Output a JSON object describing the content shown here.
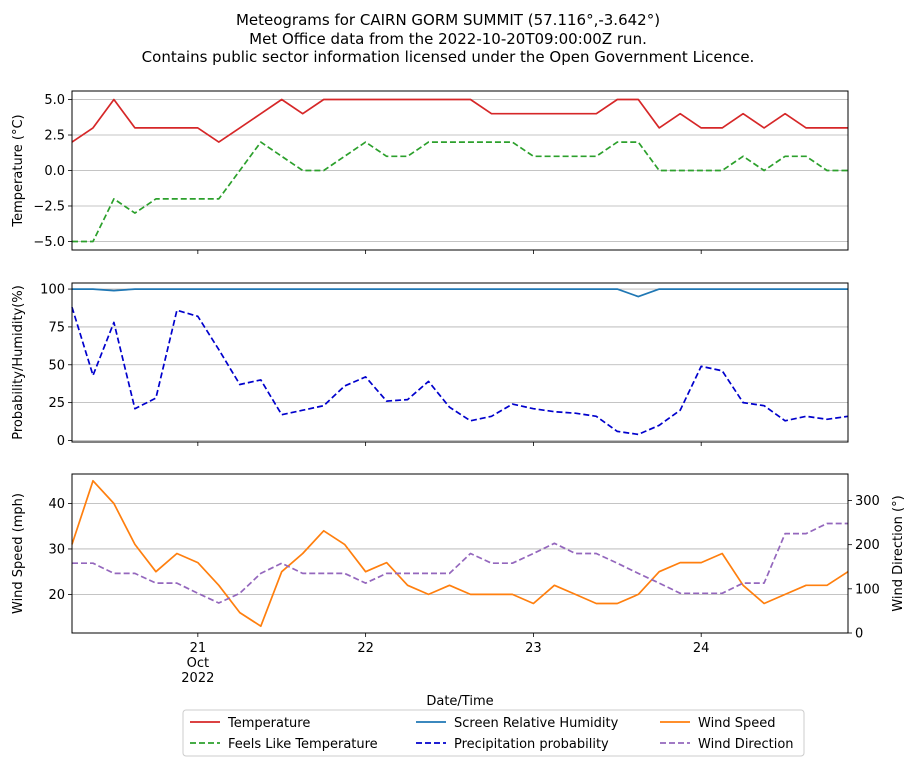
{
  "title_lines": [
    "Meteograms for CAIRN GORM SUMMIT (57.116°,-3.642°)",
    "Met Office data from the 2022-10-20T09:00:00Z run.",
    "Contains public sector information licensed under the Open Government Licence."
  ],
  "x_axis": {
    "label": "Date/Time",
    "start": "2022-10-20T06:00",
    "end": "2022-10-24T21:00",
    "ticks": [
      {
        "time": "2022-10-21T00:00",
        "lines": [
          "21",
          "Oct",
          "2022"
        ]
      },
      {
        "time": "2022-10-22T00:00",
        "lines": [
          "22"
        ]
      },
      {
        "time": "2022-10-23T00:00",
        "lines": [
          "23"
        ]
      },
      {
        "time": "2022-10-24T00:00",
        "lines": [
          "24"
        ]
      }
    ]
  },
  "colors": {
    "temperature": "#d62728",
    "feels_like": "#2ca02c",
    "humidity": "#1f77b4",
    "precip": "#0000cc",
    "wind_speed": "#ff7f0e",
    "wind_dir": "#9467bd",
    "grid": "#b0b0b0"
  },
  "legend": {
    "placement": "bottom-center",
    "entries": [
      {
        "label": "Temperature",
        "color": "#d62728",
        "dash": false
      },
      {
        "label": "Feels Like Temperature",
        "color": "#2ca02c",
        "dash": true
      },
      {
        "label": "Screen Relative Humidity",
        "color": "#1f77b4",
        "dash": false
      },
      {
        "label": "Precipitation probability",
        "color": "#0000cc",
        "dash": true
      },
      {
        "label": "Wind Speed",
        "color": "#ff7f0e",
        "dash": false
      },
      {
        "label": "Wind Direction",
        "color": "#9467bd",
        "dash": true
      }
    ]
  },
  "chart_data": [
    {
      "type": "line",
      "ylabel": "Temperature (°C)",
      "ylim": [
        -5.6,
        5.6
      ],
      "yticks": [
        -5.0,
        -2.5,
        0.0,
        2.5,
        5.0
      ],
      "ytick_labels": [
        "−5.0",
        "−2.5",
        "0.0",
        "2.5",
        "5.0"
      ],
      "grid": true,
      "x": [
        "2022-10-20T06:00",
        "2022-10-20T09:00",
        "2022-10-20T12:00",
        "2022-10-20T15:00",
        "2022-10-20T18:00",
        "2022-10-20T21:00",
        "2022-10-21T00:00",
        "2022-10-21T03:00",
        "2022-10-21T06:00",
        "2022-10-21T09:00",
        "2022-10-21T12:00",
        "2022-10-21T15:00",
        "2022-10-21T18:00",
        "2022-10-21T21:00",
        "2022-10-22T00:00",
        "2022-10-22T03:00",
        "2022-10-22T06:00",
        "2022-10-22T09:00",
        "2022-10-22T12:00",
        "2022-10-22T15:00",
        "2022-10-22T18:00",
        "2022-10-22T21:00",
        "2022-10-23T00:00",
        "2022-10-23T03:00",
        "2022-10-23T06:00",
        "2022-10-23T09:00",
        "2022-10-23T12:00",
        "2022-10-23T15:00",
        "2022-10-23T18:00",
        "2022-10-23T21:00",
        "2022-10-24T00:00",
        "2022-10-24T03:00",
        "2022-10-24T06:00",
        "2022-10-24T09:00",
        "2022-10-24T12:00",
        "2022-10-24T15:00",
        "2022-10-24T18:00",
        "2022-10-24T21:00"
      ],
      "series": [
        {
          "name": "Temperature",
          "color": "#d62728",
          "dash": false,
          "values": [
            2,
            3,
            5,
            3,
            3,
            3,
            3,
            2,
            3,
            4,
            5,
            4,
            5,
            5,
            5,
            5,
            5,
            5,
            5,
            5,
            4,
            4,
            4,
            4,
            4,
            4,
            5,
            5,
            3,
            4,
            3,
            3,
            4,
            3,
            4,
            3,
            3,
            3
          ]
        },
        {
          "name": "Feels Like Temperature",
          "color": "#2ca02c",
          "dash": true,
          "values": [
            -5,
            -5,
            -2,
            -3,
            -2,
            -2,
            -2,
            -2,
            0,
            2,
            1,
            0,
            0,
            1,
            2,
            1,
            1,
            2,
            2,
            2,
            2,
            2,
            1,
            1,
            1,
            1,
            2,
            2,
            0,
            0,
            0,
            0,
            1,
            0,
            1,
            1,
            0,
            0
          ]
        }
      ]
    },
    {
      "type": "line",
      "ylabel": "Probability/Humidity(%)",
      "ylim": [
        -1,
        104
      ],
      "yticks": [
        0,
        25,
        50,
        75,
        100
      ],
      "ytick_labels": [
        "0",
        "25",
        "50",
        "75",
        "100"
      ],
      "grid": true,
      "x": [
        "2022-10-20T06:00",
        "2022-10-20T09:00",
        "2022-10-20T12:00",
        "2022-10-20T15:00",
        "2022-10-20T18:00",
        "2022-10-20T21:00",
        "2022-10-21T00:00",
        "2022-10-21T03:00",
        "2022-10-21T06:00",
        "2022-10-21T09:00",
        "2022-10-21T12:00",
        "2022-10-21T15:00",
        "2022-10-21T18:00",
        "2022-10-21T21:00",
        "2022-10-22T00:00",
        "2022-10-22T03:00",
        "2022-10-22T06:00",
        "2022-10-22T09:00",
        "2022-10-22T12:00",
        "2022-10-22T15:00",
        "2022-10-22T18:00",
        "2022-10-22T21:00",
        "2022-10-23T00:00",
        "2022-10-23T03:00",
        "2022-10-23T06:00",
        "2022-10-23T09:00",
        "2022-10-23T12:00",
        "2022-10-23T15:00",
        "2022-10-23T18:00",
        "2022-10-23T21:00",
        "2022-10-24T00:00",
        "2022-10-24T03:00",
        "2022-10-24T06:00",
        "2022-10-24T09:00",
        "2022-10-24T12:00",
        "2022-10-24T15:00",
        "2022-10-24T18:00",
        "2022-10-24T21:00"
      ],
      "series": [
        {
          "name": "Screen Relative Humidity",
          "color": "#1f77b4",
          "dash": false,
          "values": [
            100,
            100,
            99,
            100,
            100,
            100,
            100,
            100,
            100,
            100,
            100,
            100,
            100,
            100,
            100,
            100,
            100,
            100,
            100,
            100,
            100,
            100,
            100,
            100,
            100,
            100,
            100,
            95,
            100,
            100,
            100,
            100,
            100,
            100,
            100,
            100,
            100,
            100
          ]
        },
        {
          "name": "Precipitation probability",
          "color": "#0000cc",
          "dash": true,
          "values": [
            88,
            43,
            78,
            21,
            28,
            86,
            82,
            60,
            37,
            40,
            17,
            20,
            23,
            36,
            42,
            26,
            27,
            39,
            22,
            13,
            16,
            24,
            21,
            19,
            18,
            16,
            6,
            4,
            10,
            20,
            49,
            46,
            25,
            23,
            13,
            16,
            14,
            16
          ]
        }
      ]
    },
    {
      "type": "line",
      "ylabel": "Wind Speed (mph)",
      "ylabel_right": "Wind Direction (°)",
      "ylim": [
        11.5,
        46.5
      ],
      "yticks": [
        20,
        30,
        40
      ],
      "ytick_labels": [
        "20",
        "30",
        "40"
      ],
      "ylim_right": [
        0,
        360
      ],
      "yticks_right": [
        0,
        100,
        200,
        300
      ],
      "ytick_labels_right": [
        "0",
        "100",
        "200",
        "300"
      ],
      "grid": true,
      "x": [
        "2022-10-20T06:00",
        "2022-10-20T09:00",
        "2022-10-20T12:00",
        "2022-10-20T15:00",
        "2022-10-20T18:00",
        "2022-10-20T21:00",
        "2022-10-21T00:00",
        "2022-10-21T03:00",
        "2022-10-21T06:00",
        "2022-10-21T09:00",
        "2022-10-21T12:00",
        "2022-10-21T15:00",
        "2022-10-21T18:00",
        "2022-10-21T21:00",
        "2022-10-22T00:00",
        "2022-10-22T03:00",
        "2022-10-22T06:00",
        "2022-10-22T09:00",
        "2022-10-22T12:00",
        "2022-10-22T15:00",
        "2022-10-22T18:00",
        "2022-10-22T21:00",
        "2022-10-23T00:00",
        "2022-10-23T03:00",
        "2022-10-23T06:00",
        "2022-10-23T09:00",
        "2022-10-23T12:00",
        "2022-10-23T15:00",
        "2022-10-23T18:00",
        "2022-10-23T21:00",
        "2022-10-24T00:00",
        "2022-10-24T03:00",
        "2022-10-24T06:00",
        "2022-10-24T09:00",
        "2022-10-24T12:00",
        "2022-10-24T15:00",
        "2022-10-24T18:00",
        "2022-10-24T21:00"
      ],
      "series": [
        {
          "name": "Wind Speed",
          "color": "#ff7f0e",
          "dash": false,
          "axis": "left",
          "values": [
            31,
            45,
            40,
            31,
            25,
            29,
            27,
            22,
            16,
            13,
            25,
            29,
            34,
            31,
            25,
            27,
            22,
            20,
            22,
            20,
            20,
            20,
            18,
            22,
            20,
            18,
            18,
            20,
            25,
            27,
            27,
            29,
            22,
            18,
            20,
            22,
            22,
            25
          ]
        },
        {
          "name": "Wind Direction",
          "color": "#9467bd",
          "dash": true,
          "axis": "right",
          "values": [
            158,
            158,
            135,
            135,
            113,
            113,
            90,
            68,
            90,
            135,
            158,
            135,
            135,
            135,
            113,
            135,
            135,
            135,
            135,
            180,
            158,
            158,
            180,
            203,
            180,
            180,
            158,
            135,
            113,
            90,
            90,
            90,
            113,
            113,
            225,
            225,
            248,
            248
          ]
        }
      ]
    }
  ]
}
